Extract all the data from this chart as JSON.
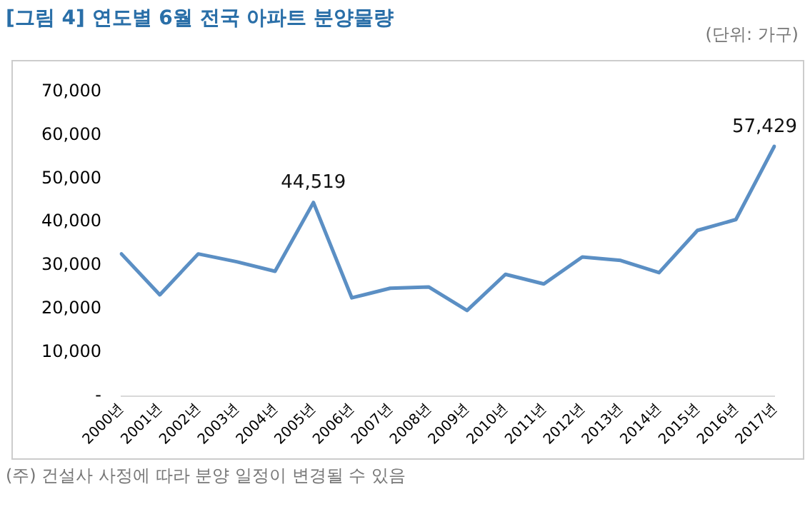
{
  "chart_data": {
    "type": "line",
    "title": "[그림 4] 연도별 6월 전국 아파트 분양물량",
    "subtitle": "(단위: 가구)",
    "categories": [
      "2000년",
      "2001년",
      "2002년",
      "2003년",
      "2004년",
      "2005년",
      "2006년",
      "2007년",
      "2008년",
      "2009년",
      "2010년",
      "2011년",
      "2012년",
      "2013년",
      "2014년",
      "2015년",
      "2016년",
      "2017년"
    ],
    "series": [
      {
        "color": "#5b8fc4",
        "values": [
          32700,
          23300,
          32700,
          30900,
          28700,
          44519,
          22600,
          24800,
          25100,
          19700,
          28000,
          25800,
          32000,
          31200,
          28400,
          38100,
          40600,
          57429
        ],
        "value_labels": [
          null,
          null,
          null,
          null,
          null,
          "44,519",
          null,
          null,
          null,
          null,
          null,
          null,
          null,
          null,
          null,
          null,
          null,
          "57,429"
        ]
      }
    ],
    "ylim": [
      0,
      70000
    ],
    "yticks": [
      {
        "value": 0,
        "label": "-"
      },
      {
        "value": 10000,
        "label": "10,000"
      },
      {
        "value": 20000,
        "label": "20,000"
      },
      {
        "value": 30000,
        "label": "30,000"
      },
      {
        "value": 40000,
        "label": "40,000"
      },
      {
        "value": 50000,
        "label": "50,000"
      },
      {
        "value": 60000,
        "label": "60,000"
      },
      {
        "value": 70000,
        "label": "70,000"
      }
    ],
    "grid": false,
    "legend": false,
    "marker": "none",
    "line_style": "solid",
    "annotations": [
      "(주) 건설사 사정에 따라 분양 일정이 변경될 수 있음"
    ]
  }
}
